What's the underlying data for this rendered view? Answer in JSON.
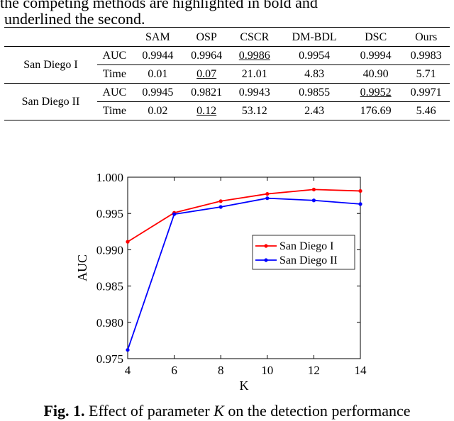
{
  "paper": {
    "top_text": "the competing methods are highlighted in bold and",
    "caption_tail": "underlined the second.",
    "table": {
      "headers": [
        "",
        "",
        "SAM",
        "OSP",
        "CSCR",
        "DM-BDL",
        "DSC",
        "Ours"
      ],
      "groups": [
        {
          "dataset": "San Diego I",
          "rows": [
            {
              "metric": "AUC",
              "values": [
                "0.9944",
                "0.9964",
                "0.9986",
                "0.9954",
                "0.9994",
                "0.9983"
              ],
              "bold": [
                4
              ],
              "underline": [
                2
              ]
            },
            {
              "metric": "Time",
              "values": [
                "0.01",
                "0.07",
                "21.01",
                "4.83",
                "40.90",
                "5.71"
              ],
              "bold": [
                0
              ],
              "underline": [
                1
              ]
            }
          ]
        },
        {
          "dataset": "San Diego II",
          "rows": [
            {
              "metric": "AUC",
              "values": [
                "0.9945",
                "0.9821",
                "0.9943",
                "0.9855",
                "0.9952",
                "0.9971"
              ],
              "bold": [
                5
              ],
              "underline": [
                4
              ]
            },
            {
              "metric": "Time",
              "values": [
                "0.02",
                "0.12",
                "53.12",
                "2.43",
                "176.69",
                "5.46"
              ],
              "bold": [
                0
              ],
              "underline": [
                1
              ]
            }
          ]
        }
      ]
    },
    "figure_caption": {
      "label": "Fig. 1.",
      "text_before": " Effect of parameter ",
      "param": "K",
      "text_after": " on the detection performance"
    }
  },
  "chart_data": {
    "type": "line",
    "xlabel": "K",
    "ylabel": "AUC",
    "x": [
      4,
      6,
      8,
      10,
      12,
      14
    ],
    "xticks": [
      "4",
      "6",
      "8",
      "10",
      "12",
      "14"
    ],
    "yticks": [
      "0.975",
      "0.980",
      "0.985",
      "0.990",
      "0.995",
      "1.000"
    ],
    "ylim": [
      0.975,
      1.0
    ],
    "xlim": [
      4,
      14
    ],
    "grid": false,
    "legend_position": "center-right",
    "series": [
      {
        "name": "San Diego I",
        "color": "#ff0000",
        "values": [
          0.9911,
          0.9951,
          0.9967,
          0.9977,
          0.9983,
          0.9981
        ]
      },
      {
        "name": "San Diego II",
        "color": "#0000ff",
        "values": [
          0.9762,
          0.9949,
          0.9959,
          0.9971,
          0.9968,
          0.9963
        ]
      }
    ]
  }
}
